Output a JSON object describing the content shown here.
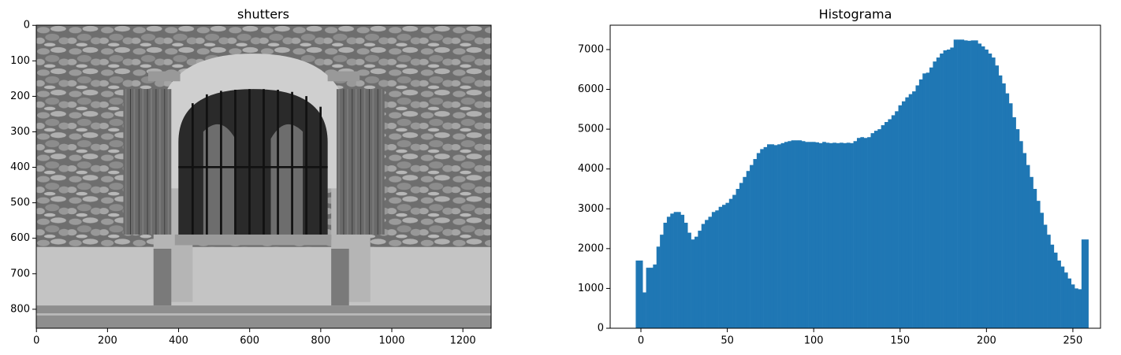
{
  "chart_data": [
    {
      "type": "image",
      "title": "shutters",
      "xlim": [
        -0.5,
        1279.5
      ],
      "ylim": [
        853.5,
        -0.5
      ],
      "xticks": [
        0,
        200,
        400,
        600,
        800,
        1000,
        1200
      ],
      "yticks": [
        0,
        100,
        200,
        300,
        400,
        500,
        600,
        700,
        800
      ]
    },
    {
      "type": "hist",
      "title": "Histograma",
      "color": "#1f77b4",
      "bins": [
        -3,
        -1,
        1,
        3,
        5,
        7,
        9,
        11,
        13,
        15,
        17,
        19,
        21,
        23,
        25,
        27,
        29,
        31,
        33,
        35,
        37,
        39,
        41,
        43,
        45,
        47,
        49,
        51,
        53,
        55,
        57,
        59,
        61,
        63,
        65,
        67,
        69,
        71,
        73,
        75,
        77,
        79,
        81,
        83,
        85,
        87,
        89,
        91,
        93,
        95,
        97,
        99,
        101,
        103,
        105,
        107,
        109,
        111,
        113,
        115,
        117,
        119,
        121,
        123,
        125,
        127,
        129,
        131,
        133,
        135,
        137,
        139,
        141,
        143,
        145,
        147,
        149,
        151,
        153,
        155,
        157,
        159,
        161,
        163,
        165,
        167,
        169,
        171,
        173,
        175,
        177,
        179,
        181,
        183,
        185,
        187,
        189,
        191,
        193,
        195,
        197,
        199,
        201,
        203,
        205,
        207,
        209,
        211,
        213,
        215,
        217,
        219,
        221,
        223,
        225,
        227,
        229,
        231,
        233,
        235,
        237,
        239,
        241,
        243,
        245,
        247,
        249,
        251,
        253,
        255,
        257,
        259
      ],
      "counts": [
        1700,
        1700,
        900,
        1520,
        1520,
        1600,
        2050,
        2350,
        2650,
        2800,
        2880,
        2920,
        2920,
        2850,
        2650,
        2400,
        2230,
        2300,
        2450,
        2620,
        2720,
        2800,
        2920,
        2960,
        3050,
        3100,
        3150,
        3250,
        3350,
        3500,
        3650,
        3800,
        3950,
        4100,
        4250,
        4400,
        4500,
        4550,
        4620,
        4620,
        4600,
        4620,
        4650,
        4680,
        4700,
        4720,
        4720,
        4720,
        4700,
        4680,
        4680,
        4680,
        4670,
        4650,
        4680,
        4660,
        4650,
        4660,
        4650,
        4660,
        4650,
        4660,
        4650,
        4700,
        4780,
        4800,
        4780,
        4800,
        4900,
        4960,
        5000,
        5100,
        5180,
        5250,
        5350,
        5450,
        5600,
        5700,
        5800,
        5880,
        5950,
        6100,
        6250,
        6400,
        6420,
        6550,
        6700,
        6800,
        6900,
        6980,
        7000,
        7050,
        7250,
        7250,
        7250,
        7230,
        7220,
        7230,
        7230,
        7150,
        7080,
        7000,
        6900,
        6800,
        6600,
        6350,
        6150,
        5900,
        5650,
        5300,
        5000,
        4700,
        4400,
        4100,
        3800,
        3500,
        3200,
        2900,
        2600,
        2350,
        2100,
        1900,
        1700,
        1550,
        1400,
        1250,
        1100,
        1000,
        980,
        2230,
        2230
      ],
      "xlim": [
        -17.8,
        266
      ],
      "ylim": [
        0,
        7612
      ],
      "xticks": [
        0,
        50,
        100,
        150,
        200,
        250
      ],
      "yticks": [
        0,
        1000,
        2000,
        3000,
        4000,
        5000,
        6000,
        7000
      ]
    }
  ]
}
